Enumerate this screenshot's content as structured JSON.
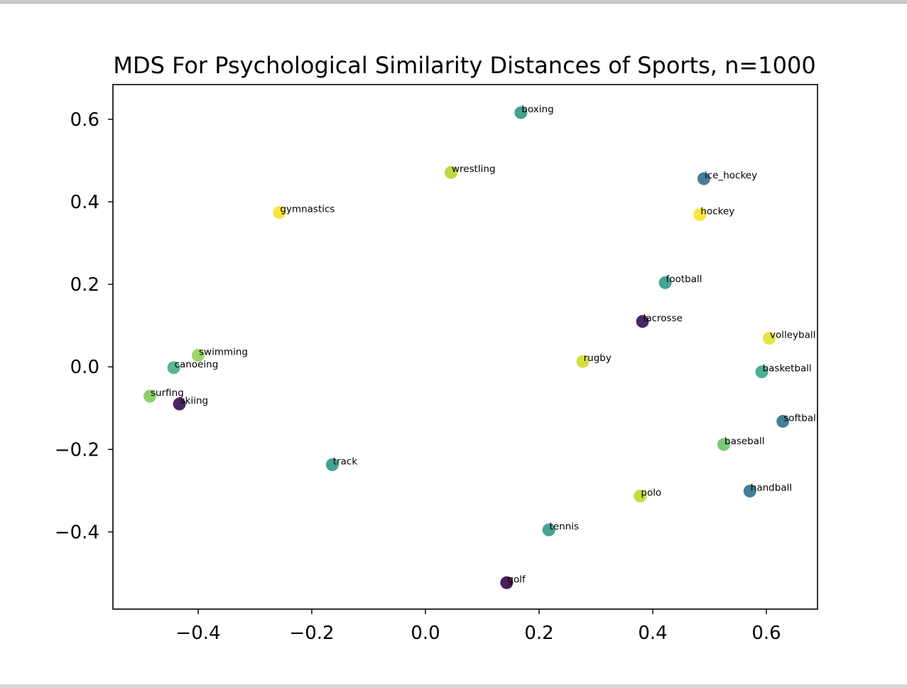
{
  "chart_data": {
    "type": "scatter",
    "title": "MDS For Psychological Similarity Distances of Sports, n=1000",
    "xlabel": "",
    "ylabel": "",
    "xlim": [
      -0.55,
      0.69
    ],
    "ylim": [
      -0.587,
      0.684
    ],
    "xticks": [
      -0.4,
      -0.2,
      0.0,
      0.2,
      0.4,
      0.6
    ],
    "xtick_labels": [
      "−0.4",
      "−0.2",
      "0.0",
      "0.2",
      "0.4",
      "0.6"
    ],
    "yticks": [
      -0.4,
      -0.2,
      0.0,
      0.2,
      0.4,
      0.6
    ],
    "ytick_labels": [
      "−0.4",
      "−0.2",
      "0.0",
      "0.2",
      "0.4",
      "0.6"
    ],
    "grid": false,
    "points": [
      {
        "label": "boxing",
        "x": 0.168,
        "y": 0.616,
        "color": "#44a193"
      },
      {
        "label": "wrestling",
        "x": 0.045,
        "y": 0.471,
        "color": "#bdd841"
      },
      {
        "label": "ice_hockey",
        "x": 0.49,
        "y": 0.456,
        "color": "#447f99"
      },
      {
        "label": "gymnastics",
        "x": -0.257,
        "y": 0.374,
        "color": "#f9e53c"
      },
      {
        "label": "hockey",
        "x": 0.483,
        "y": 0.369,
        "color": "#f9e53c"
      },
      {
        "label": "football",
        "x": 0.422,
        "y": 0.204,
        "color": "#44a193"
      },
      {
        "label": "lacrosse",
        "x": 0.382,
        "y": 0.11,
        "color": "#4a2865"
      },
      {
        "label": "volleyball",
        "x": 0.605,
        "y": 0.069,
        "color": "#e4e343"
      },
      {
        "label": "swimming",
        "x": -0.4,
        "y": 0.028,
        "color": "#9fd46a"
      },
      {
        "label": "rugby",
        "x": 0.277,
        "y": 0.013,
        "color": "#d1df3f"
      },
      {
        "label": "canoeing",
        "x": -0.443,
        "y": -0.002,
        "color": "#5ab68e"
      },
      {
        "label": "basketball",
        "x": 0.592,
        "y": -0.012,
        "color": "#4eaf93"
      },
      {
        "label": "surfing",
        "x": -0.485,
        "y": -0.071,
        "color": "#8fce6c"
      },
      {
        "label": "skiing",
        "x": -0.433,
        "y": -0.09,
        "color": "#4a2865"
      },
      {
        "label": "softball",
        "x": 0.629,
        "y": -0.132,
        "color": "#447f99"
      },
      {
        "label": "baseball",
        "x": 0.525,
        "y": -0.188,
        "color": "#78c878"
      },
      {
        "label": "track",
        "x": -0.164,
        "y": -0.237,
        "color": "#44a193"
      },
      {
        "label": "handball",
        "x": 0.571,
        "y": -0.301,
        "color": "#447f99"
      },
      {
        "label": "polo",
        "x": 0.378,
        "y": -0.313,
        "color": "#c6dc45"
      },
      {
        "label": "tennis",
        "x": 0.217,
        "y": -0.395,
        "color": "#44a193"
      },
      {
        "label": "golf",
        "x": 0.143,
        "y": -0.523,
        "color": "#4a1f5a"
      }
    ]
  }
}
